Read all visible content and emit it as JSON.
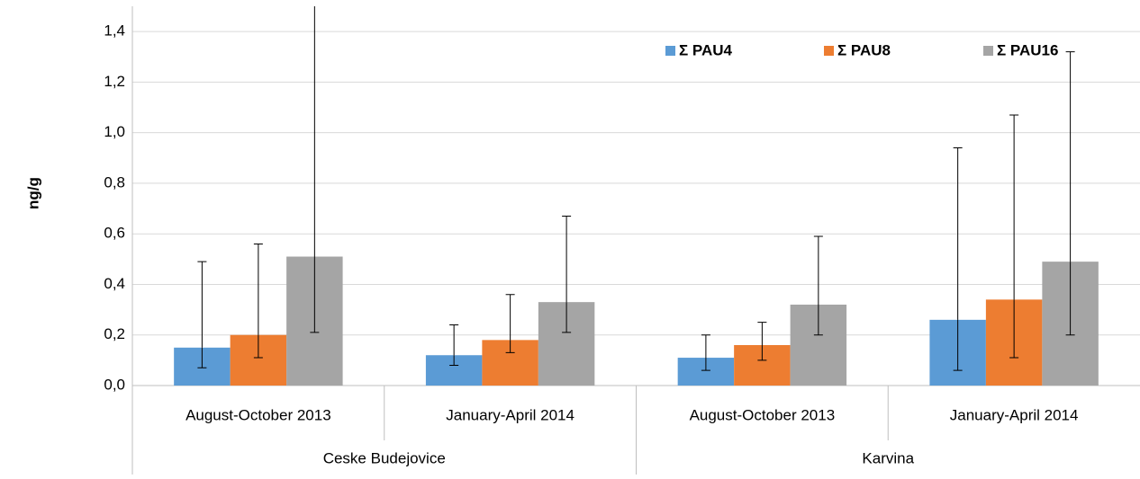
{
  "chart_data": {
    "type": "bar",
    "y_label": "ng/g",
    "categories": [
      "August-October 2013",
      "January-April 2014",
      "August-October 2013",
      "January-April 2014"
    ],
    "category_groups": [
      "Ceske Budejovice",
      "Karvina"
    ],
    "series": [
      {
        "name": "Σ PAU4",
        "color": "#5b9bd5",
        "values": [
          0.15,
          0.12,
          0.11,
          0.26
        ],
        "errors_plus": [
          0.34,
          0.12,
          0.09,
          0.68
        ],
        "errors_minus": [
          0.08,
          0.04,
          0.05,
          0.2
        ]
      },
      {
        "name": "Σ PAU8",
        "color": "#ed7d31",
        "values": [
          0.2,
          0.18,
          0.16,
          0.34
        ],
        "errors_plus": [
          0.36,
          0.18,
          0.09,
          0.73
        ],
        "errors_minus": [
          0.09,
          0.05,
          0.06,
          0.23
        ]
      },
      {
        "name": "Σ PAU16",
        "color": "#a5a5a5",
        "values": [
          0.51,
          0.33,
          0.32,
          0.49
        ],
        "errors_plus": [
          1.1,
          0.34,
          0.27,
          0.83
        ],
        "errors_minus": [
          0.3,
          0.12,
          0.12,
          0.29
        ]
      }
    ],
    "ylim": [
      0,
      1.5
    ],
    "yticks": [
      {
        "value": 0,
        "label": "0,0"
      },
      {
        "value": 0.2,
        "label": "0,2"
      },
      {
        "value": 0.4,
        "label": "0,4"
      },
      {
        "value": 0.6,
        "label": "0,6"
      },
      {
        "value": 0.8,
        "label": "0,8"
      },
      {
        "value": 1.0,
        "label": "1,0"
      },
      {
        "value": 1.2,
        "label": "1,2"
      },
      {
        "value": 1.4,
        "label": "1,4"
      }
    ],
    "grid": true,
    "legend": "top-right"
  }
}
